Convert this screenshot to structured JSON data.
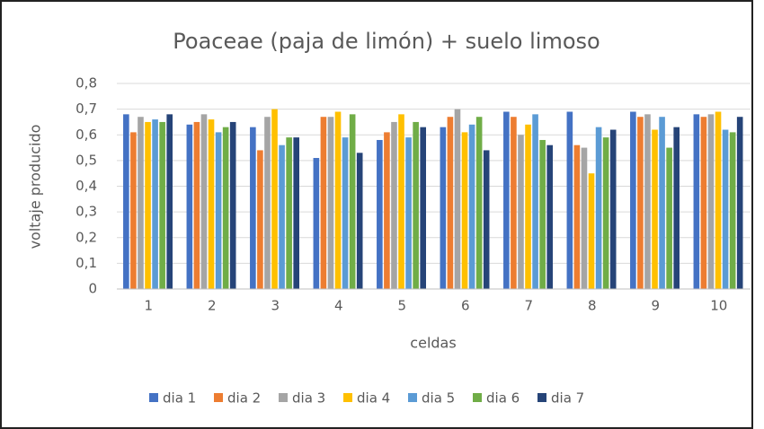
{
  "chart_data": {
    "type": "bar",
    "title": "Poaceae (paja de limón) + suelo limoso",
    "x_label": "celdas",
    "y_label": "voltaje producido",
    "categories": [
      "1",
      "2",
      "3",
      "4",
      "5",
      "6",
      "7",
      "8",
      "9",
      "10"
    ],
    "series": [
      {
        "name": "dia 1",
        "color": "#4472c4",
        "values": [
          0.68,
          0.64,
          0.63,
          0.51,
          0.58,
          0.63,
          0.69,
          0.69,
          0.69,
          0.68
        ]
      },
      {
        "name": "dia 2",
        "color": "#ed7d31",
        "values": [
          0.61,
          0.65,
          0.54,
          0.67,
          0.61,
          0.67,
          0.67,
          0.56,
          0.67,
          0.67
        ]
      },
      {
        "name": "dia 3",
        "color": "#a5a5a5",
        "values": [
          0.67,
          0.68,
          0.67,
          0.67,
          0.65,
          0.7,
          0.6,
          0.55,
          0.68,
          0.68
        ]
      },
      {
        "name": "dia 4",
        "color": "#ffc000",
        "values": [
          0.65,
          0.66,
          0.7,
          0.69,
          0.68,
          0.61,
          0.64,
          0.45,
          0.62,
          0.69
        ]
      },
      {
        "name": "dia 5",
        "color": "#5b9bd5",
        "values": [
          0.66,
          0.61,
          0.56,
          0.59,
          0.59,
          0.64,
          0.68,
          0.63,
          0.67,
          0.62
        ]
      },
      {
        "name": "dia 6",
        "color": "#70ad47",
        "values": [
          0.65,
          0.63,
          0.59,
          0.68,
          0.65,
          0.67,
          0.58,
          0.59,
          0.55,
          0.61
        ]
      },
      {
        "name": "dia 7",
        "color": "#264478",
        "values": [
          0.68,
          0.65,
          0.59,
          0.53,
          0.63,
          0.54,
          0.56,
          0.62,
          0.63,
          0.67
        ]
      }
    ],
    "ylim": [
      0,
      0.8
    ],
    "yticks": [
      0,
      {
        "value": 0.1,
        "label": "0,1"
      },
      {
        "value": 0.2,
        "label": "0,2"
      },
      {
        "value": 0.3,
        "label": "0,3"
      },
      {
        "value": 0.4,
        "label": "0,4"
      },
      {
        "value": 0.5,
        "label": "0,5"
      },
      {
        "value": 0.6,
        "label": "0,6"
      },
      {
        "value": 0.7,
        "label": "0,7"
      },
      {
        "value": 0.8,
        "label": "0,8"
      }
    ],
    "grid": true,
    "legend": "bottom"
  }
}
